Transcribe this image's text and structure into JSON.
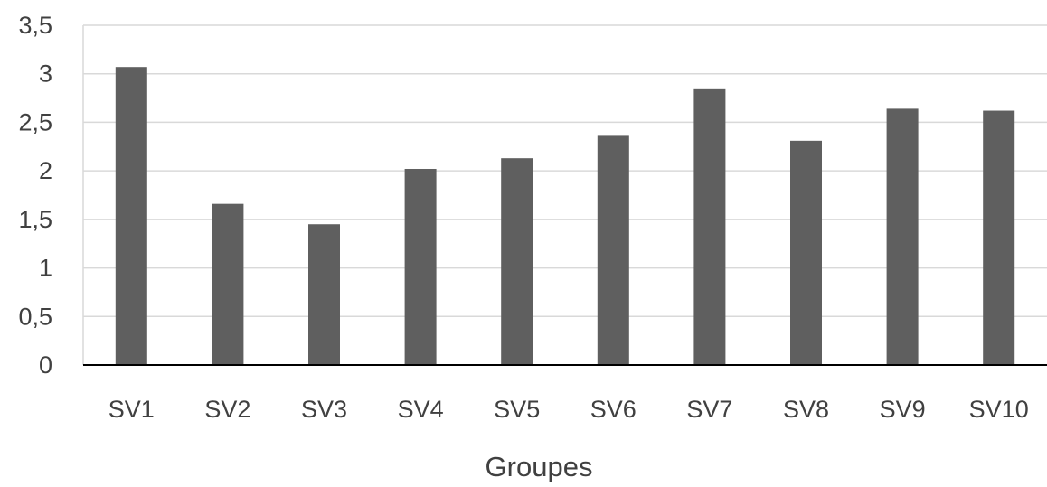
{
  "chart_data": {
    "type": "bar",
    "title": "",
    "xlabel": "Groupes",
    "ylabel": "",
    "categories": [
      "SV1",
      "SV2",
      "SV3",
      "SV4",
      "SV5",
      "SV6",
      "SV7",
      "SV8",
      "SV9",
      "SV10"
    ],
    "values": [
      3.07,
      1.66,
      1.45,
      2.02,
      2.13,
      2.37,
      2.85,
      2.31,
      2.64,
      2.62
    ],
    "ylim": [
      0,
      3.5
    ],
    "yticks": [
      0,
      0.5,
      1,
      1.5,
      2,
      2.5,
      3,
      3.5
    ],
    "ytick_labels": [
      "0",
      "0,5",
      "1",
      "1,5",
      "2",
      "2,5",
      "3",
      "3,5"
    ],
    "grid": true,
    "legend": "none",
    "colors": {
      "bar": "#5f5f5f",
      "grid": "#d9d9d9",
      "axis": "#000000",
      "text": "#404040"
    }
  }
}
